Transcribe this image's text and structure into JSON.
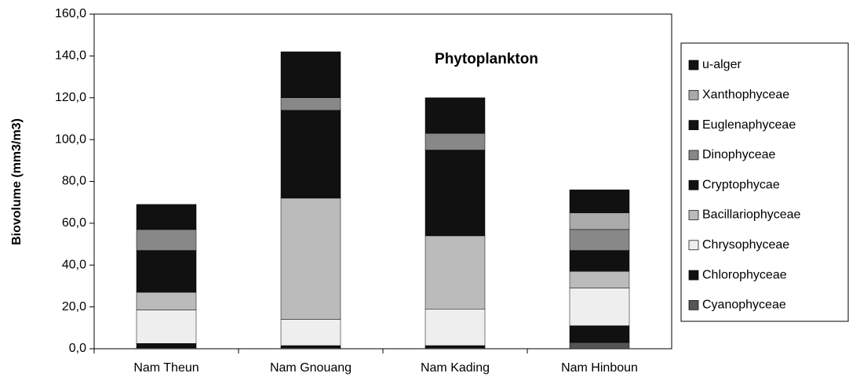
{
  "chart_data": {
    "type": "stacked_bar",
    "title": "Phytoplankton",
    "y_label": "Biovolume (mm3/m3)",
    "categories": [
      "Nam Theun",
      "Nam Gnouang",
      "Nam Kading",
      "Nam Hinboun"
    ],
    "series": [
      {
        "name": "Cyanophyceae",
        "color": "#555555",
        "values": [
          0.5,
          0.5,
          0.5,
          3
        ]
      },
      {
        "name": "Chlorophyceae",
        "color": "#111111",
        "values": [
          2,
          1,
          1,
          8
        ]
      },
      {
        "name": "Chrysophyceae",
        "color": "#eeeeee",
        "values": [
          16,
          12.5,
          17.5,
          18
        ]
      },
      {
        "name": "Bacillariophyceae",
        "color": "#bbbbbb",
        "values": [
          8.5,
          58,
          35,
          8
        ]
      },
      {
        "name": "Cryptophycae",
        "color": "#111111",
        "values": [
          20,
          42,
          41,
          10
        ]
      },
      {
        "name": "Dinophyceae",
        "color": "#888888",
        "values": [
          10,
          6,
          8,
          10
        ]
      },
      {
        "name": "Euglenaphyceae",
        "color": "#111111",
        "values": [
          0,
          0,
          0,
          0
        ]
      },
      {
        "name": "Xanthophyceae",
        "color": "#aaaaaa",
        "values": [
          0,
          0,
          0,
          8
        ]
      },
      {
        "name": "u-alger",
        "color": "#111111",
        "values": [
          12,
          22,
          17,
          11
        ]
      }
    ],
    "ylim": [
      0,
      160
    ],
    "yticks": [
      {
        "value": 0,
        "label": "0,0"
      },
      {
        "value": 20,
        "label": "20,0"
      },
      {
        "value": 40,
        "label": "40,0"
      },
      {
        "value": 60,
        "label": "60,0"
      },
      {
        "value": 80,
        "label": "80,0"
      },
      {
        "value": 100,
        "label": "100,0"
      },
      {
        "value": 120,
        "label": "120,0"
      },
      {
        "value": 140,
        "label": "140,0"
      },
      {
        "value": 160,
        "label": "160,0"
      }
    ]
  }
}
